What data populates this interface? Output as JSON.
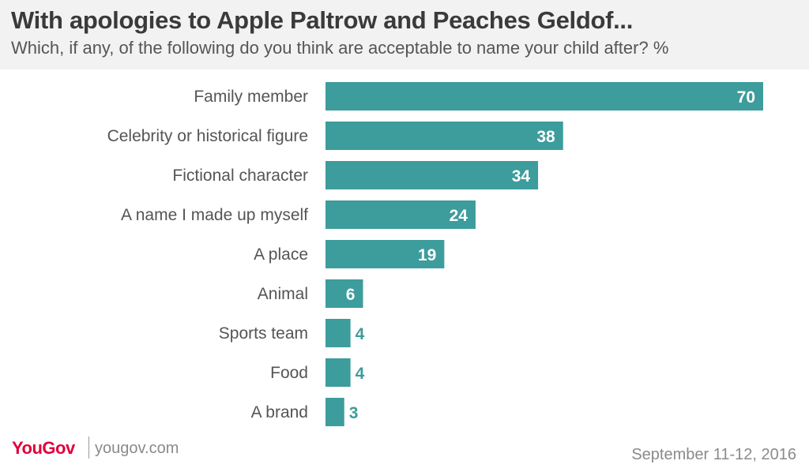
{
  "header": {
    "title": "With apologies to Apple Paltrow and Peaches Geldof...",
    "subtitle": "Which, if any, of the following do you think are acceptable to name your child after? %"
  },
  "chart_data": {
    "type": "bar",
    "orientation": "horizontal",
    "title": "With apologies to Apple Paltrow and Peaches Geldof...",
    "subtitle": "Which, if any, of the following do you think are acceptable to name your child after? %",
    "categories": [
      "Family member",
      "Celebrity or historical figure",
      "Fictional character",
      "A name I made up myself",
      "A place",
      "Animal",
      "Sports team",
      "Food",
      "A brand"
    ],
    "values": [
      70,
      38,
      34,
      24,
      19,
      6,
      4,
      4,
      3
    ],
    "xlabel": "",
    "ylabel": "",
    "xlim": [
      0,
      70
    ],
    "grid": false,
    "bar_color": "#3d9c9c",
    "label_inside_color": "#ffffff",
    "label_outside_color": "#3d9c9c"
  },
  "footer": {
    "logo": "YouGov",
    "site": "yougov.com",
    "date": "September 11-12, 2016"
  },
  "colors": {
    "brand": "#e0003c",
    "header_bg": "#f2f2f2"
  }
}
